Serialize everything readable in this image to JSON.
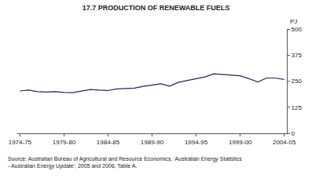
{
  "chart_data": {
    "type": "line",
    "title": "17.7 PRODUCTION OF RENEWABLE FUELS",
    "y_label": "PJ",
    "categories": [
      "1974-75",
      null,
      null,
      null,
      null,
      "1979-80",
      null,
      null,
      null,
      null,
      "1984-85",
      null,
      null,
      null,
      null,
      "1989-90",
      null,
      null,
      null,
      null,
      "1994-95",
      null,
      null,
      null,
      null,
      "1999-00",
      null,
      null,
      null,
      null,
      "2004-05"
    ],
    "values": [
      203,
      207,
      200,
      198,
      200,
      196,
      195,
      203,
      210,
      207,
      205,
      213,
      215,
      217,
      225,
      232,
      237,
      226,
      245,
      253,
      262,
      270,
      285,
      282,
      281,
      276,
      262,
      246,
      265,
      265,
      258
    ],
    "color": "#1f2a5a",
    "ylim": [
      0,
      500
    ],
    "yticks": [
      0,
      125,
      250,
      375,
      500
    ],
    "grid": false,
    "annotations": [
      "Source: Australian Bureau of Agricultural and Resource Economics, 'Australian Energy Statistics",
      "- Australian Energy Update', 2005 and 2006, Table A."
    ]
  }
}
